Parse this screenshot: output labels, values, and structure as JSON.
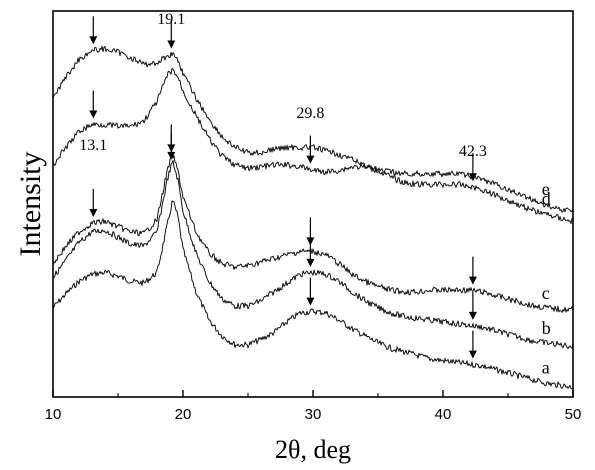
{
  "chart_data": {
    "type": "line",
    "xlabel": "2θ, deg",
    "ylabel": "Intensity",
    "xlim": [
      10,
      50
    ],
    "xticks": [
      10,
      20,
      30,
      40,
      50
    ],
    "grid": false,
    "y_tick_labels": false,
    "series": [
      {
        "name": "a",
        "peaks": [
          13.1,
          19.1,
          29.8,
          42.3
        ],
        "x": [
          10,
          11,
          12,
          13,
          14,
          15,
          16,
          17,
          18,
          18.8,
          19.2,
          19.6,
          20,
          21,
          22,
          23,
          24,
          25,
          26,
          27,
          28,
          29,
          30,
          31,
          32,
          33,
          34,
          35,
          36,
          37,
          38,
          39,
          40,
          41,
          42,
          43,
          44,
          45,
          46,
          47,
          48,
          49,
          50
        ],
        "y": [
          4.5,
          5.3,
          6,
          6.4,
          6.5,
          6.3,
          6,
          5.9,
          6.5,
          9.2,
          10.6,
          9.7,
          7.8,
          5.4,
          3.8,
          2.9,
          2.4,
          2.4,
          2.7,
          3.1,
          3.7,
          4.2,
          4.3,
          4.2,
          3.8,
          3.3,
          2.9,
          2.5,
          2.2,
          2.0,
          1.8,
          1.6,
          1.5,
          1.4,
          1.3,
          1.2,
          1.0,
          0.8,
          0.6,
          0.4,
          0.2,
          0.1,
          0
        ]
      },
      {
        "name": "b",
        "x": [
          10,
          11,
          12,
          13,
          14,
          15,
          16,
          17,
          18,
          18.8,
          19.2,
          19.6,
          20,
          21,
          22,
          23,
          24,
          25,
          26,
          27,
          28,
          29,
          30,
          31,
          32,
          33,
          34,
          35,
          36,
          37,
          38,
          39,
          40,
          41,
          42,
          43,
          44,
          45,
          46,
          47,
          48,
          49,
          50
        ],
        "y": [
          6.2,
          7.2,
          8.2,
          8.8,
          8.9,
          8.5,
          8.1,
          8.0,
          8.8,
          11.8,
          12.8,
          11.8,
          10.0,
          7.6,
          6.0,
          5.0,
          4.6,
          4.6,
          4.9,
          5.4,
          5.9,
          6.4,
          6.5,
          6.4,
          6.0,
          5.4,
          4.9,
          4.5,
          4.2,
          4.0,
          3.9,
          3.8,
          3.7,
          3.6,
          3.5,
          3.4,
          3.2,
          3.0,
          2.8,
          2.6,
          2.5,
          2.4,
          2.3
        ]
      },
      {
        "name": "c",
        "x": [
          10,
          11,
          12,
          13,
          14,
          15,
          16,
          17,
          18,
          18.8,
          19.2,
          19.6,
          20,
          21,
          22,
          23,
          24,
          25,
          26,
          27,
          28,
          29,
          30,
          31,
          32,
          33,
          34,
          35,
          36,
          37,
          38,
          39,
          40,
          41,
          42,
          43,
          44,
          45,
          46,
          47,
          48,
          49,
          50
        ],
        "y": [
          7.0,
          8.0,
          8.8,
          9.3,
          9.4,
          9.1,
          8.8,
          8.7,
          9.5,
          12.3,
          13.2,
          12.3,
          10.8,
          8.8,
          7.6,
          7.0,
          6.8,
          6.9,
          7.1,
          7.3,
          7.5,
          7.7,
          7.7,
          7.5,
          7.0,
          6.4,
          6.0,
          5.7,
          5.5,
          5.4,
          5.4,
          5.5,
          5.5,
          5.5,
          5.5,
          5.4,
          5.2,
          5.0,
          4.8,
          4.6,
          4.5,
          4.4,
          4.4
        ]
      },
      {
        "name": "d",
        "x": [
          10,
          11,
          12,
          13,
          14,
          15,
          16,
          17,
          18,
          18.8,
          19.2,
          19.6,
          20,
          21,
          22,
          23,
          24,
          25,
          26,
          27,
          28,
          29,
          30,
          31,
          32,
          33,
          34,
          35,
          36,
          37,
          38,
          39,
          40,
          41,
          42,
          43,
          44,
          45,
          46,
          47,
          48,
          49,
          50
        ],
        "y": [
          12.6,
          13.6,
          14.5,
          14.9,
          14.9,
          14.8,
          14.8,
          15.1,
          16.2,
          17.7,
          18.0,
          17.6,
          16.8,
          15.4,
          14.1,
          13.1,
          12.6,
          12.4,
          12.5,
          12.6,
          12.6,
          12.5,
          12.3,
          12.2,
          12.3,
          12.5,
          12.5,
          12.3,
          11.9,
          11.6,
          11.5,
          11.5,
          11.5,
          11.5,
          11.4,
          11.2,
          10.9,
          10.6,
          10.3,
          10.0,
          9.8,
          9.6,
          9.4
        ]
      },
      {
        "name": "e",
        "x": [
          10,
          11,
          12,
          13,
          14,
          15,
          16,
          17,
          18,
          18.8,
          19.2,
          19.6,
          20,
          21,
          22,
          23,
          24,
          25,
          26,
          27,
          28,
          29,
          30,
          31,
          32,
          33,
          34,
          35,
          36,
          37,
          38,
          39,
          40,
          41,
          42,
          43,
          44,
          45,
          46,
          47,
          48,
          49,
          50
        ],
        "y": [
          16.4,
          17.6,
          18.6,
          19.1,
          19.2,
          19.0,
          18.7,
          18.3,
          18.4,
          18.8,
          18.9,
          18.6,
          17.8,
          16.4,
          15.2,
          14.2,
          13.6,
          13.3,
          13.3,
          13.5,
          13.6,
          13.6,
          13.6,
          13.4,
          13.2,
          12.9,
          12.6,
          12.3,
          12.2,
          12.1,
          12.1,
          12.1,
          12.1,
          12.1,
          12.0,
          11.8,
          11.5,
          11.2,
          10.9,
          10.6,
          10.3,
          10.1,
          10.0
        ]
      }
    ],
    "annotations": [
      {
        "text": "19.1",
        "x": 19.1
      },
      {
        "text": "13.1",
        "x": 13.1
      },
      {
        "text": "29.8",
        "x": 29.8
      },
      {
        "text": "42.3",
        "x": 42.3
      }
    ],
    "markers": [
      {
        "series": "e",
        "x": 13.1
      },
      {
        "series": "d",
        "x": 13.1
      },
      {
        "series": "c",
        "x": 13.1
      },
      {
        "series": "e",
        "x": 19.1
      },
      {
        "series": "c",
        "x": 19.1
      },
      {
        "series": "b",
        "x": 19.1
      },
      {
        "series": "d",
        "x": 29.8
      },
      {
        "series": "c",
        "x": 29.8
      },
      {
        "series": "b",
        "x": 29.8
      },
      {
        "series": "a",
        "x": 29.8
      },
      {
        "series": "d",
        "x": 42.3
      },
      {
        "series": "c",
        "x": 42.3
      },
      {
        "series": "b",
        "x": 42.3
      },
      {
        "series": "a",
        "x": 42.3
      }
    ],
    "colors": {
      "line": "#111111",
      "axis": "#000000"
    }
  }
}
